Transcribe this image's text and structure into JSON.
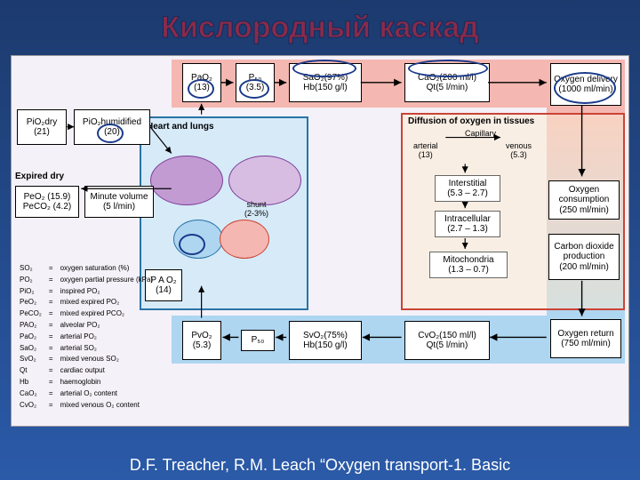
{
  "colors": {
    "slide_bg_top": "#1c3a6e",
    "slide_bg_bottom": "#2b5aa8",
    "title_fill": "#8a2a4a",
    "title_stroke": "#1a2a5a",
    "diagram_bg": "#f5f1f8",
    "pink": "#f5b7b1",
    "blue": "#a9cce3",
    "heart_box_bg": "#d6eaf8",
    "heart_box_border": "#2874a6",
    "tissue_box_bg": "#fdebd0",
    "tissue_box_border": "#cb4335",
    "pink_band": "#f5b7b1",
    "blue_band": "#aed6f1",
    "lung_left": "#c39bd3",
    "lung_right": "#d7bde2",
    "arrow": "#000000",
    "circle_mark": "#1a3a8a"
  },
  "title": "Кислородный каскад",
  "caption": "D.F.  Treacher, R.M. Leach “Oxygen transport-1. Basic",
  "top_row": {
    "pao2": {
      "label": "PaO₂",
      "value": "(13)"
    },
    "p50": {
      "label": "P₅₀",
      "value": "(3.5)"
    },
    "sao2": {
      "label": "SaO₂(97%)",
      "value": "Hb(150 g/l)"
    },
    "cao2": {
      "label": "CaO₂(200 ml/l)",
      "value": "Qt(5 l/min)"
    },
    "delivery": {
      "label": "Oxygen delivery",
      "value": "(1000 ml/min)"
    }
  },
  "bottom_row": {
    "pvo2": {
      "label": "PvO₂",
      "value": "(5.3)"
    },
    "p50": {
      "label": "P₅₀",
      "value": ""
    },
    "svo2": {
      "label": "SvO₂(75%)",
      "value": "Hb(150 g/l)"
    },
    "cvo2": {
      "label": "CvO₂(150 ml/l)",
      "value": "Qt(5 l/min)"
    },
    "return": {
      "label": "Oxygen return",
      "value": "(750 ml/min)"
    }
  },
  "left_col": {
    "pio2_dry": {
      "label": "PiO₂dry",
      "value": "(21)"
    },
    "pio2_hum": {
      "label": "PiO₂humidified",
      "value": "(20)"
    },
    "expired_dry": "Expired dry",
    "peo2": {
      "label": "PeO₂ (15.9)",
      "value": "PeCO₂ (4.2)"
    },
    "minute_volume": {
      "label": "Minute volume",
      "value": "(5 l/min)"
    }
  },
  "heart_section": {
    "title": "Heart and lungs",
    "shunt": {
      "label": "shunt",
      "value": "(2-3%)"
    },
    "pao2_alv": {
      "label": "P A O₂",
      "value": "(14)"
    }
  },
  "tissue_section": {
    "title": "Diffusion of oxygen in tissues",
    "capillary": "Capillary",
    "arterial": {
      "label": "arterial",
      "value": "(13)"
    },
    "venous": {
      "label": "venous",
      "value": "(5.3)"
    },
    "interstitial": {
      "label": "Interstitial",
      "value": "(5.3 – 2.7)"
    },
    "intracellular": {
      "label": "Intracellular",
      "value": "(2.7 – 1.3)"
    },
    "mitochondria": {
      "label": "Mitochondria",
      "value": "(1.3 – 0.7)"
    },
    "consumption": {
      "label": "Oxygen consumption",
      "value": "(250 ml/min)"
    },
    "co2": {
      "label": "Carbon dioxide production",
      "value": "(200 ml/min)"
    }
  },
  "legend": [
    {
      "sym": "SO₂",
      "desc": "oxygen saturation (%)"
    },
    {
      "sym": "PO₂",
      "desc": "oxygen partial pressure (kPa)"
    },
    {
      "sym": "PiO₂",
      "desc": "inspired PO₂"
    },
    {
      "sym": "PeO₂",
      "desc": "mixed expired PO₂"
    },
    {
      "sym": "PeCO₂",
      "desc": "mixed expired PCO₂"
    },
    {
      "sym": "PAO₂",
      "desc": "alveolar PO₂"
    },
    {
      "sym": "PaO₂",
      "desc": "arterial PO₂"
    },
    {
      "sym": "SaO₂",
      "desc": "arterial SO₂"
    },
    {
      "sym": "SvO₂",
      "desc": "mixed venous SO₂"
    },
    {
      "sym": "Qt",
      "desc": "cardiac output"
    },
    {
      "sym": "Hb",
      "desc": "haemoglobin"
    },
    {
      "sym": "CaO₂",
      "desc": "arterial O₂ content"
    },
    {
      "sym": "CvO₂",
      "desc": "mixed venous O₂ content"
    }
  ]
}
